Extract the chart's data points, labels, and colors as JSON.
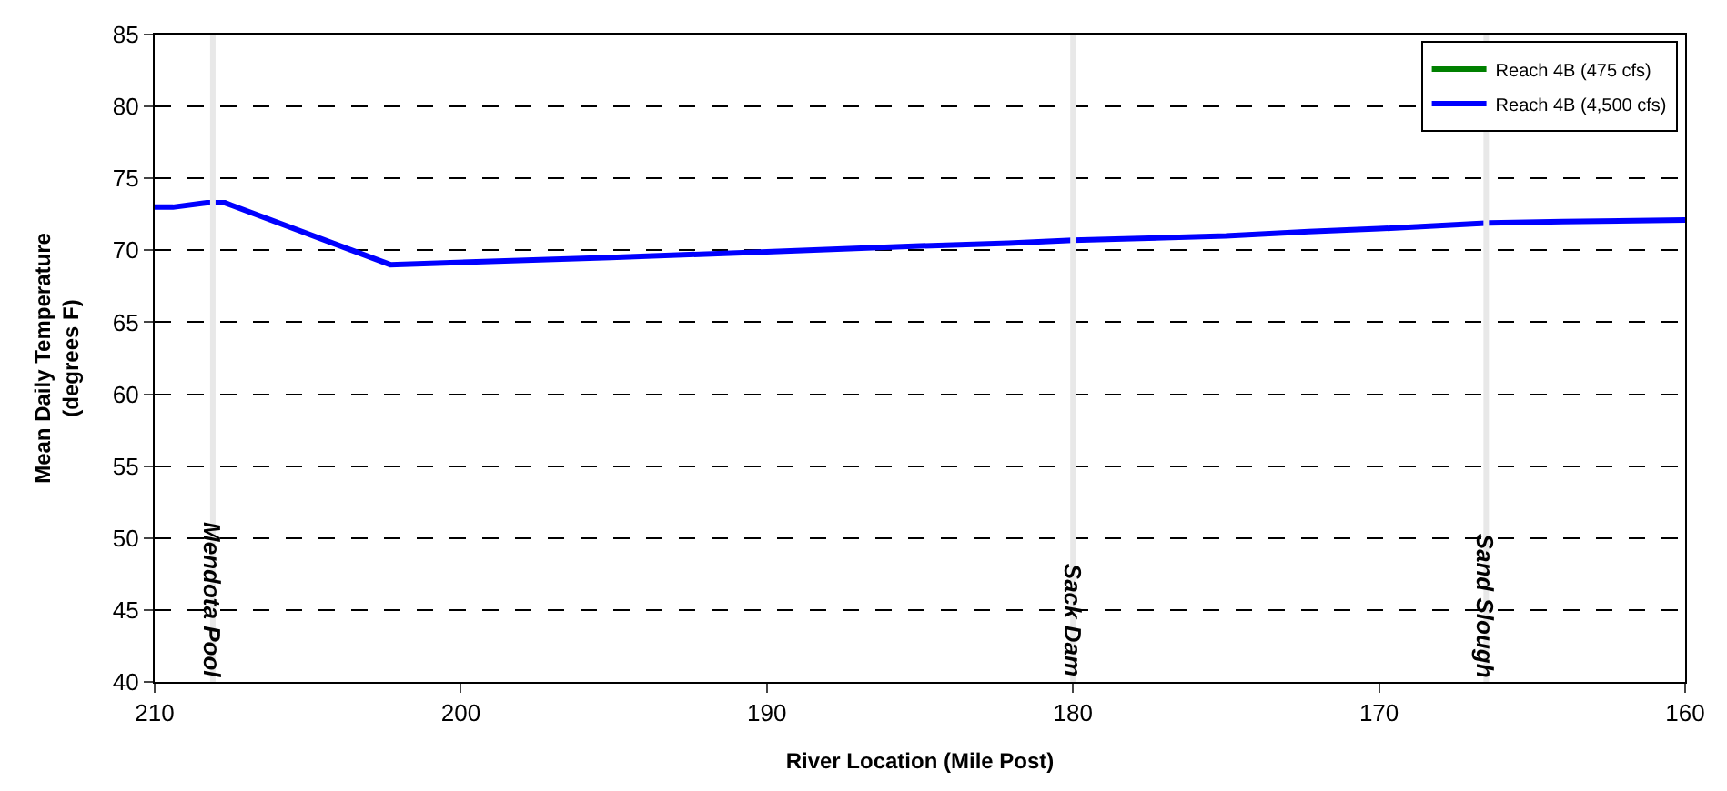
{
  "chart_data": {
    "type": "line",
    "xlabel": "River Location (Mile Post)",
    "ylabel": "Mean Daily Temperature\n(degrees F)",
    "x": [
      210,
      209.4,
      208.3,
      207.7,
      202.3,
      195.1,
      190,
      185,
      182.1,
      180,
      175,
      172.3,
      170,
      166.4,
      164,
      160
    ],
    "series": [
      {
        "name": "Reach 4B (475 cfs)",
        "color": "#008000",
        "values": [
          null,
          null,
          null,
          null,
          null,
          null,
          null,
          null,
          null,
          null,
          null,
          null,
          null,
          null,
          null,
          null
        ]
      },
      {
        "name": "Reach 4B (4,500 cfs)",
        "color": "#0000ff",
        "values": [
          73.0,
          73.0,
          73.3,
          73.3,
          69.0,
          69.5,
          69.9,
          70.3,
          70.5,
          70.7,
          71.0,
          71.3,
          71.5,
          71.9,
          72.0,
          72.1
        ]
      }
    ],
    "xlim": [
      210,
      160
    ],
    "xticks": [
      210,
      200,
      190,
      180,
      170,
      160
    ],
    "ylim": [
      40,
      85
    ],
    "yticks": [
      40,
      45,
      50,
      55,
      60,
      65,
      70,
      75,
      80,
      85
    ],
    "grid": "y",
    "legend": "top right",
    "marker": "none",
    "line_style": "solid",
    "ref_lines": [
      {
        "axis": "x",
        "value": 208.1,
        "label": "Mendota Pool",
        "color": "#e8e8e8"
      },
      {
        "axis": "x",
        "value": 180,
        "label": "Sack Dam",
        "color": "#e8e8e8"
      },
      {
        "axis": "x",
        "value": 166.5,
        "label": "Sand Slough",
        "color": "#e8e8e8"
      }
    ]
  }
}
